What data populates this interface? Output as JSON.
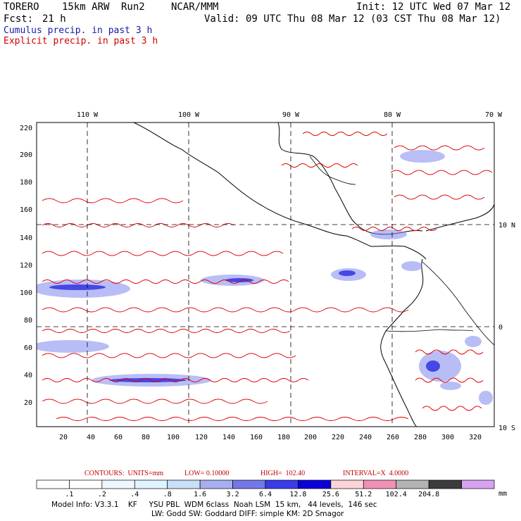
{
  "header": {
    "model": "TORERO",
    "resolution": "15km ARW",
    "run": "Run2",
    "org": "NCAR/MMM",
    "init": "Init: 12 UTC Wed 07 Mar 12",
    "fcst_label": "Fcst:",
    "fcst_value": "21 h",
    "valid": "Valid: 09 UTC Thu 08 Mar 12 (03 CST Thu 08 Mar 12)"
  },
  "legend": {
    "cumulus": "Cumulus precip. in past 3 h",
    "explicit": "Explicit precip. in past 3 h"
  },
  "axes": {
    "top_lon": [
      "110 W",
      "100 W",
      "90 W",
      "80 W",
      "70 W"
    ],
    "right_lat": [
      "10 N",
      "0",
      "10 S"
    ],
    "left_y": [
      "220",
      "200",
      "180",
      "160",
      "140",
      "120",
      "100",
      "80",
      "60",
      "40",
      "20"
    ],
    "bottom_x": [
      "20",
      "40",
      "60",
      "80",
      "100",
      "120",
      "140",
      "160",
      "180",
      "200",
      "220",
      "240",
      "260",
      "280",
      "300",
      "320"
    ]
  },
  "contours": {
    "caption_units": "CONTOURS:  UNITS=mm",
    "caption_low": "LOW= 0.10000",
    "caption_high": "HIGH=  102.40",
    "caption_interval": "INTERVAL=X  4.0000"
  },
  "colorbar": {
    "unit": "mm",
    "labels": [
      ".1",
      ".2",
      ".4",
      ".8",
      "1.6",
      "3.2",
      "6.4",
      "12.8",
      "25.6",
      "51.2",
      "102.4",
      "204.8"
    ],
    "colors": [
      "#ffffff",
      "#ffffff",
      "#eef6ff",
      "#e0f4ff",
      "#c9e0f7",
      "#a8aff0",
      "#7377e8",
      "#3b3bea",
      "#0b00d8",
      "#fbd4d9",
      "#f190b5",
      "#b3b3b3",
      "#3c3c3c",
      "#d6a3f2"
    ]
  },
  "model_info": {
    "line1": "Model Info: V3.3.1    KF     YSU PBL  WDM 6class  Noah LSM  15 km,   44 levels,  146 sec",
    "line2": "LW: Godd SW: Goddard DIFF: simple KM: 2D Smagor"
  }
}
